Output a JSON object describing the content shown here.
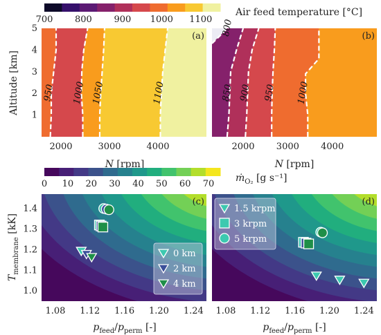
{
  "colors": {
    "inferno_steps": [
      "#0d0a29",
      "#35106b",
      "#5c1a74",
      "#85216b",
      "#b0305a",
      "#d5484c",
      "#ef6c2f",
      "#f99c1d",
      "#f8c932",
      "#f0f1a0"
    ],
    "viridis_steps": [
      "#46085c",
      "#471f76",
      "#433986",
      "#3b528b",
      "#2f6b8e",
      "#26818e",
      "#1f988b",
      "#21ae7e",
      "#41c36d",
      "#73d056",
      "#b3de2b",
      "#f4e61e"
    ],
    "marker_edge": "#ffffff",
    "contour": "#ffffff"
  },
  "colorbars": {
    "temperature": {
      "label": "Air feed temperature [°C]",
      "ticks": [
        "700",
        "800",
        "900",
        "1000",
        "1100"
      ],
      "range": [
        700,
        1150
      ]
    },
    "oxygen": {
      "label_main": "ṁ",
      "label_sub": "O₂",
      "label_unit": "[g s⁻¹]",
      "ticks": [
        "0",
        "10",
        "20",
        "30",
        "40",
        "50",
        "60",
        "70"
      ],
      "range": [
        0,
        75
      ]
    }
  },
  "chart_data": [
    {
      "type": "heatmap",
      "panel": "(a)",
      "xlabel_var": "N",
      "xlabel_unit": "[rpm]",
      "ylabel": "Altitude [km]",
      "xticks": [
        "2000",
        "3000",
        "4000"
      ],
      "yticks": [
        "1",
        "2",
        "3",
        "4",
        "5"
      ],
      "xlim": [
        1600,
        5000
      ],
      "ylim": [
        0,
        5
      ],
      "contours": [
        {
          "label": "950",
          "points": [
            [
              1780,
              0
            ],
            [
              1800,
              1
            ],
            [
              1800,
              2
            ],
            [
              1850,
              3
            ],
            [
              1900,
              4
            ],
            [
              1900,
              5
            ]
          ]
        },
        {
          "label": "1000",
          "points": [
            [
              2450,
              0
            ],
            [
              2450,
              1
            ],
            [
              2420,
              2
            ],
            [
              2430,
              3
            ],
            [
              2470,
              4
            ],
            [
              2550,
              5
            ]
          ]
        },
        {
          "label": "1050",
          "points": [
            [
              2800,
              0
            ],
            [
              2800,
              1
            ],
            [
              2820,
              2
            ],
            [
              2850,
              3
            ],
            [
              2880,
              4
            ],
            [
              2900,
              5
            ]
          ]
        },
        {
          "label": "1100",
          "points": [
            [
              4050,
              0
            ],
            [
              4050,
              1
            ],
            [
              4070,
              2
            ],
            [
              4100,
              3
            ],
            [
              4150,
              4
            ],
            [
              4200,
              5
            ]
          ]
        }
      ],
      "regions": [
        "#ef6c2f",
        "#d5484c",
        "#f99c1d",
        "#f8c932",
        "#f0f1a0"
      ]
    },
    {
      "type": "heatmap",
      "panel": "(b)",
      "xlabel_var": "N",
      "xlabel_unit": "[rpm]",
      "xticks": [
        "2000",
        "3000",
        "4000"
      ],
      "xlim": [
        1300,
        5000
      ],
      "ylim": [
        0,
        5
      ],
      "contours": [
        {
          "label": "800",
          "points": [
            [
              1300,
              4.3
            ],
            [
              1500,
              4.7
            ],
            [
              1640,
              5
            ]
          ]
        },
        {
          "label": "850",
          "points": [
            [
              1640,
              0
            ],
            [
              1680,
              1
            ],
            [
              1700,
              2
            ],
            [
              1720,
              3
            ],
            [
              1850,
              4
            ],
            [
              2000,
              5
            ]
          ]
        },
        {
          "label": "900",
          "points": [
            [
              2050,
              0
            ],
            [
              2080,
              1
            ],
            [
              2100,
              2
            ],
            [
              2120,
              3
            ],
            [
              2200,
              4
            ],
            [
              2350,
              5
            ]
          ]
        },
        {
          "label": "950",
          "points": [
            [
              2640,
              0
            ],
            [
              2640,
              1
            ],
            [
              2650,
              2
            ],
            [
              2670,
              3
            ],
            [
              2700,
              4
            ],
            [
              2720,
              5
            ]
          ]
        },
        {
          "label": "1000",
          "points": [
            [
              3450,
              0
            ],
            [
              3450,
              1
            ],
            [
              3400,
              2
            ],
            [
              3400,
              2.9
            ],
            [
              3700,
              3.6
            ],
            [
              3700,
              5
            ]
          ]
        }
      ],
      "regions": [
        "#5c1a74",
        "#85216b",
        "#b0305a",
        "#d5484c",
        "#ef6c2f",
        "#f99c1d"
      ]
    },
    {
      "type": "scatter",
      "panel": "(c)",
      "xlabel": "p_feed/p_perm [-]",
      "ylabel": "T_membrane [kK]",
      "xticks": [
        "1.08",
        "1.12",
        "1.16",
        "1.20",
        "1.24"
      ],
      "yticks": [
        "1.0",
        "1.1",
        "1.2",
        "1.3",
        "1.4"
      ],
      "xlim": [
        1.064,
        1.255
      ],
      "ylim": [
        0.95,
        1.47
      ],
      "series": [
        {
          "name": "0 km",
          "color": "#3dc9b0",
          "points": [
            [
              1.11,
              1.195
            ],
            [
              1.131,
              1.32
            ],
            [
              1.136,
              1.4
            ]
          ]
        },
        {
          "name": "2 km",
          "color": "#3b4f9a",
          "points": [
            [
              1.116,
              1.18
            ],
            [
              1.133,
              1.315
            ],
            [
              1.139,
              1.397
            ]
          ]
        },
        {
          "name": "4 km",
          "color": "#1f8f48",
          "points": [
            [
              1.122,
              1.165
            ],
            [
              1.135,
              1.31
            ],
            [
              1.142,
              1.394
            ]
          ]
        }
      ],
      "legend": [
        "0 km",
        "2 km",
        "4 km"
      ],
      "legend_position": "lower-right"
    },
    {
      "type": "scatter",
      "panel": "(d)",
      "xlabel": "p_feed/p_perm [-]",
      "xticks": [
        "1.08",
        "1.12",
        "1.16",
        "1.20",
        "1.24"
      ],
      "xlim": [
        1.064,
        1.255
      ],
      "ylim": [
        0.95,
        1.47
      ],
      "series": [
        {
          "name": "1.5 krpm",
          "color": "#3dc9b0",
          "points": [
            [
              1.185,
              1.075
            ],
            [
              1.212,
              1.055
            ],
            [
              1.24,
              1.04
            ]
          ]
        },
        {
          "name": "3 krpm",
          "color": "#3dc9b0",
          "points": [
            [
              1.17,
              1.236
            ],
            [
              1.173,
              1.232
            ],
            [
              1.176,
              1.228
            ]
          ]
        },
        {
          "name": "5 krpm",
          "color": "#3dc9b0",
          "points": [
            [
              1.19,
              1.285
            ],
            [
              1.192,
              1.282
            ]
          ]
        }
      ],
      "legend": [
        "1.5 krpm",
        "3 krpm",
        "5 krpm"
      ],
      "legend_position": "upper-left"
    }
  ]
}
